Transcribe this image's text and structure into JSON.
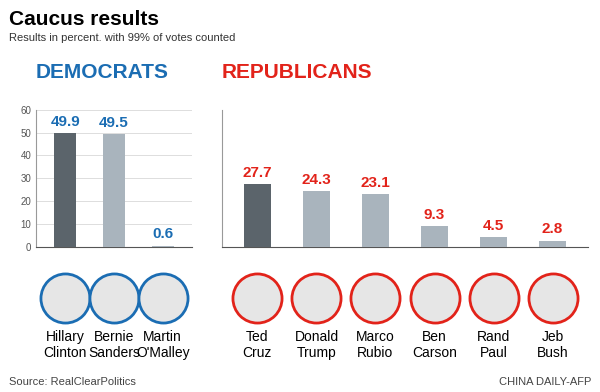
{
  "title": "Caucus results",
  "subtitle": "Results in percent. with 99% of votes counted",
  "source": "Source: RealClearPolitics",
  "credit": "CHINA DAILY-AFP",
  "chart_data": [
    {
      "type": "bar",
      "title": "DEMOCRATS",
      "categories": [
        "Hillary Clinton",
        "Bernie Sanders",
        "Martin O'Malley"
      ],
      "values": [
        49.9,
        49.5,
        0.6
      ],
      "colors": [
        "#5b646b",
        "#a9b4bd",
        "#a9b4bd"
      ],
      "ylim": [
        0,
        60
      ],
      "yticks": [
        0,
        10,
        20,
        30,
        40,
        50,
        60
      ],
      "grid": true,
      "data_labels": true
    },
    {
      "type": "bar",
      "title": "REPUBLICANS",
      "categories": [
        "Ted Cruz",
        "Donald Trump",
        "Marco Rubio",
        "Ben Carson",
        "Rand Paul",
        "Jeb Bush"
      ],
      "values": [
        27.7,
        24.3,
        23.1,
        9.3,
        4.5,
        2.8
      ],
      "colors": [
        "#5b646b",
        "#a9b4bd",
        "#a9b4bd",
        "#a9b4bd",
        "#a9b4bd",
        "#a9b4bd"
      ],
      "ylim": [
        0,
        60
      ],
      "grid": false,
      "data_labels": true,
      "tick_labels": "x"
    }
  ]
}
